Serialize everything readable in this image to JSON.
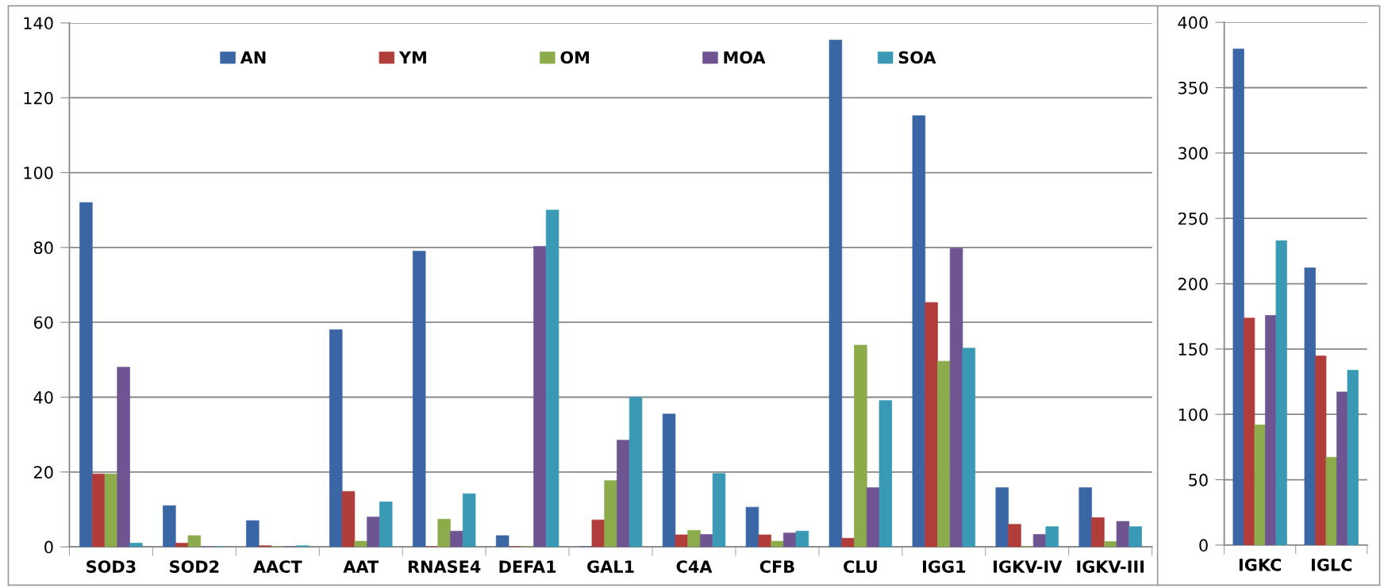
{
  "chart_data": [
    {
      "type": "bar",
      "categories": [
        "SOD3",
        "SOD2",
        "AACT",
        "AAT",
        "RNASE4",
        "DEFA1",
        "GAL1",
        "C4A",
        "CFB",
        "CLU",
        "IGG1",
        "IGKV-IV",
        "IGKV-III"
      ],
      "series": [
        {
          "name": "AN",
          "color": "#3b66a5",
          "values": [
            92,
            11,
            7,
            58,
            79,
            3,
            0,
            35.5,
            10.6,
            135.4,
            115.2,
            15.8,
            15.8
          ]
        },
        {
          "name": "YM",
          "color": "#b03d3a",
          "values": [
            19.5,
            1,
            0.3,
            14.8,
            0,
            0,
            7.2,
            3.2,
            3.2,
            2.3,
            65.3,
            6,
            7.8
          ]
        },
        {
          "name": "OM",
          "color": "#8cab4b",
          "values": [
            19.5,
            3,
            0,
            1.5,
            7.4,
            0,
            17.7,
            4.4,
            1.5,
            53.9,
            49.6,
            0,
            1.4
          ]
        },
        {
          "name": "MOA",
          "color": "#6e5592",
          "values": [
            48,
            0,
            0,
            8,
            4.2,
            80.3,
            28.5,
            3.3,
            3.7,
            15.8,
            79.8,
            3.3,
            6.8
          ]
        },
        {
          "name": "SOA",
          "color": "#3a9ab5",
          "values": [
            1,
            0,
            0.3,
            12,
            14.2,
            90,
            40,
            19.6,
            4.2,
            39.1,
            53.1,
            5.4,
            5.4
          ]
        }
      ],
      "ylim": [
        0,
        140
      ],
      "yticks": [
        0,
        20,
        40,
        60,
        80,
        100,
        120,
        140
      ],
      "grid": "y",
      "legend": "top"
    },
    {
      "type": "bar",
      "categories": [
        "IGKC",
        "IGLC"
      ],
      "series": [
        {
          "color": "#3b66a5",
          "values": [
            379.6,
            212.2
          ]
        },
        {
          "color": "#b03d3a",
          "values": [
            173.7,
            144.7
          ]
        },
        {
          "color": "#8cab4b",
          "values": [
            91.9,
            67.2
          ]
        },
        {
          "color": "#6e5592",
          "values": [
            175.7,
            117.2
          ]
        },
        {
          "color": "#3a9ab5",
          "values": [
            232.9,
            133.8
          ]
        }
      ],
      "ylim": [
        0,
        400
      ],
      "yticks": [
        0,
        50,
        100,
        150,
        200,
        250,
        300,
        350,
        400
      ],
      "grid": "y"
    }
  ]
}
